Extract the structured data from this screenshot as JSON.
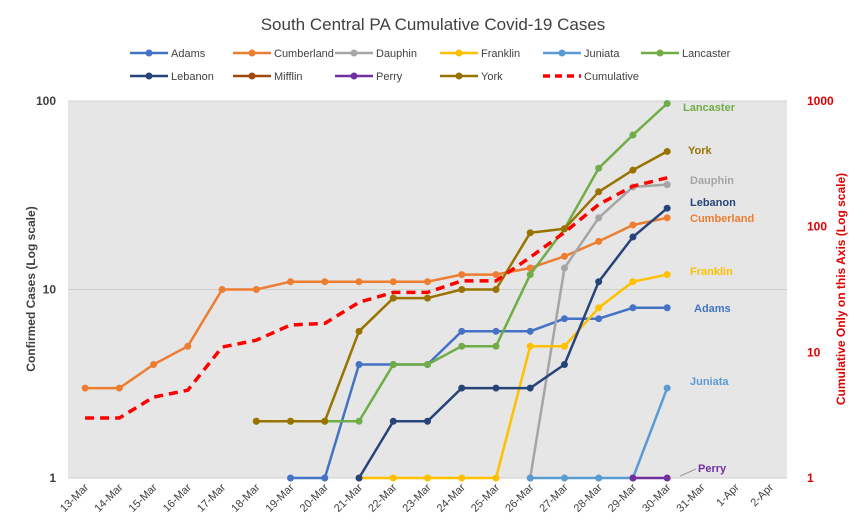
{
  "chart_data": {
    "type": "line",
    "title": "South Central PA Cumulative Covid-19 Cases",
    "ylabel_left": "Confirmed Cases (Log scale)",
    "ylabel_right": "Cumulative Only on this Axis (Log scale)",
    "y_scale": "log",
    "ylim_left": [
      1,
      100
    ],
    "ylim_right": [
      1,
      1000
    ],
    "left_ticks": [
      "1",
      "10",
      "100"
    ],
    "right_ticks": [
      "1",
      "10",
      "100",
      "1000"
    ],
    "grid": "horizontal",
    "legend_position": "top",
    "categories": [
      "13-Mar",
      "14-Mar",
      "15-Mar",
      "16-Mar",
      "17-Mar",
      "18-Mar",
      "19-Mar",
      "20-Mar",
      "21-Mar",
      "22-Mar",
      "23-Mar",
      "24-Mar",
      "25-Mar",
      "26-Mar",
      "27-Mar",
      "28-Mar",
      "29-Mar",
      "30-Mar",
      "31-Mar",
      "1-Apr",
      "2-Apr"
    ],
    "series": [
      {
        "name": "Adams",
        "color": "#4472c4",
        "label": "Adams",
        "values": [
          null,
          null,
          null,
          null,
          null,
          null,
          1,
          1,
          4,
          4,
          4,
          6,
          6,
          6,
          7,
          7,
          8,
          8,
          null,
          null,
          null
        ]
      },
      {
        "name": "Cumberland",
        "color": "#ed7d31",
        "label": "Cumberland",
        "values": [
          3,
          3,
          4,
          5,
          10,
          10,
          11,
          11,
          11,
          11,
          11,
          12,
          12,
          13,
          15,
          18,
          22,
          24,
          null,
          null,
          null
        ]
      },
      {
        "name": "Dauphin",
        "color": "#a5a5a5",
        "label": "Dauphin",
        "values": [
          null,
          null,
          null,
          null,
          null,
          null,
          null,
          null,
          null,
          null,
          null,
          null,
          null,
          1,
          13,
          24,
          35,
          36,
          null,
          null,
          null
        ]
      },
      {
        "name": "Franklin",
        "color": "#ffc000",
        "label": "Franklin",
        "values": [
          null,
          null,
          null,
          null,
          null,
          null,
          null,
          null,
          1,
          1,
          1,
          1,
          1,
          5,
          5,
          8,
          11,
          12,
          null,
          null,
          null
        ]
      },
      {
        "name": "Juniata",
        "color": "#5b9bd5",
        "label": "Juniata",
        "values": [
          null,
          null,
          null,
          null,
          null,
          null,
          null,
          null,
          null,
          null,
          null,
          null,
          null,
          1,
          1,
          1,
          1,
          3,
          null,
          null,
          null
        ]
      },
      {
        "name": "Lancaster",
        "color": "#70ad47",
        "label": "Lancaster",
        "values": [
          null,
          null,
          null,
          null,
          null,
          2,
          2,
          2,
          2,
          4,
          4,
          5,
          5,
          12,
          21,
          44,
          66,
          97,
          null,
          null,
          null
        ]
      },
      {
        "name": "Lebanon",
        "color": "#264478",
        "label": "Lebanon",
        "values": [
          null,
          null,
          null,
          null,
          null,
          null,
          null,
          null,
          1,
          2,
          2,
          3,
          3,
          3,
          4,
          11,
          19,
          27,
          null,
          null,
          null
        ]
      },
      {
        "name": "Mifflin",
        "color": "#9e480e",
        "label": "",
        "values": [
          null,
          null,
          null,
          null,
          null,
          null,
          null,
          null,
          null,
          null,
          null,
          null,
          null,
          null,
          null,
          null,
          null,
          null,
          null,
          null,
          null
        ]
      },
      {
        "name": "Perry",
        "color": "#7030a0",
        "label": "Perry",
        "values": [
          null,
          null,
          null,
          null,
          null,
          null,
          null,
          null,
          null,
          null,
          null,
          null,
          null,
          null,
          null,
          null,
          1,
          1,
          null,
          null,
          null
        ]
      },
      {
        "name": "York",
        "color": "#997300",
        "label": "York",
        "values": [
          null,
          null,
          null,
          null,
          null,
          2,
          2,
          2,
          6,
          9,
          9,
          10,
          10,
          20,
          21,
          33,
          43,
          54,
          null,
          null,
          null
        ]
      },
      {
        "name": "Cumulative",
        "color": "#ff0000",
        "label": "",
        "dashed": true,
        "axis": "right",
        "values": [
          3,
          3,
          4.4,
          5,
          11,
          12.5,
          16.5,
          17,
          25,
          30,
          30,
          37,
          37,
          57,
          90,
          150,
          210,
          245,
          null,
          null,
          null
        ]
      }
    ]
  }
}
